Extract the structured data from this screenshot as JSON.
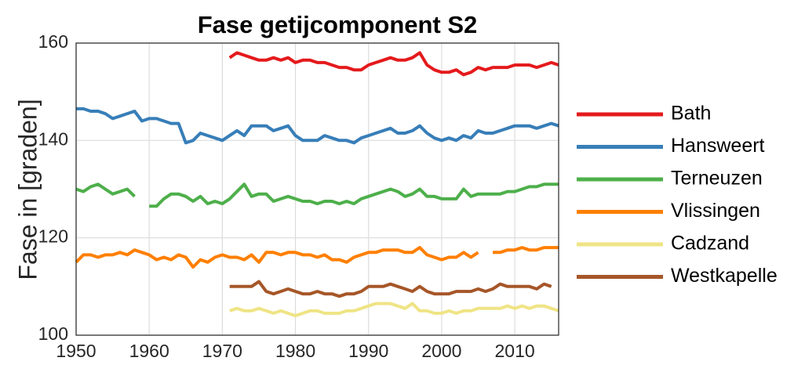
{
  "chart_data": {
    "type": "line",
    "title": "Fase getijcomponent S2",
    "y_label": "Fase in [graden]",
    "x": [
      1950,
      1951,
      1952,
      1953,
      1954,
      1955,
      1956,
      1957,
      1958,
      1959,
      1960,
      1961,
      1962,
      1963,
      1964,
      1965,
      1966,
      1967,
      1968,
      1969,
      1970,
      1971,
      1972,
      1973,
      1974,
      1975,
      1976,
      1977,
      1978,
      1979,
      1980,
      1981,
      1982,
      1983,
      1984,
      1985,
      1986,
      1987,
      1988,
      1989,
      1990,
      1991,
      1992,
      1993,
      1994,
      1995,
      1996,
      1997,
      1998,
      1999,
      2000,
      2001,
      2002,
      2003,
      2004,
      2005,
      2006,
      2007,
      2008,
      2009,
      2010,
      2011,
      2012,
      2013,
      2014,
      2015,
      2016
    ],
    "xlim": [
      1950,
      2016
    ],
    "xticks": [
      1950,
      1960,
      1970,
      1980,
      1990,
      2000,
      2010
    ],
    "ylim": [
      100,
      160
    ],
    "yticks": [
      100,
      120,
      140,
      160
    ],
    "grid": true,
    "legend": "right",
    "series": [
      {
        "name": "Bath",
        "color": "#e41a1c",
        "values": [
          null,
          null,
          null,
          null,
          null,
          null,
          null,
          null,
          null,
          null,
          null,
          null,
          null,
          null,
          null,
          null,
          null,
          null,
          null,
          null,
          null,
          157,
          158,
          157.5,
          157,
          156.5,
          156.5,
          157,
          156.5,
          157,
          156,
          156.5,
          156.5,
          156,
          156,
          155.5,
          155,
          155,
          154.5,
          154.5,
          155.5,
          156,
          156.5,
          157,
          156.5,
          156.5,
          157,
          158,
          155.5,
          154.5,
          154,
          154,
          154.5,
          153.5,
          154,
          155,
          154.5,
          155,
          155,
          155,
          155.5,
          155.5,
          155.5,
          155,
          155.5,
          156,
          155.5
        ]
      },
      {
        "name": "Hansweert",
        "color": "#377eb8",
        "values": [
          146.5,
          146.5,
          146,
          146,
          145.5,
          144.5,
          145,
          145.5,
          146,
          144,
          144.5,
          144.5,
          144,
          143.5,
          143.5,
          139.5,
          140,
          141.5,
          141,
          140.5,
          140,
          141,
          142,
          141,
          143,
          143,
          143,
          142,
          142.5,
          143,
          141,
          140,
          140,
          140,
          141,
          140.5,
          140,
          140,
          139.5,
          140.5,
          141,
          141.5,
          142,
          142.5,
          141.5,
          141.5,
          142,
          143,
          141.5,
          140.5,
          140,
          140.5,
          140,
          141,
          140.5,
          142,
          141.5,
          141.5,
          142,
          142.5,
          143,
          143,
          143,
          142.5,
          143,
          143.5,
          143
        ]
      },
      {
        "name": "Terneuzen",
        "color": "#4daf4a",
        "values": [
          130,
          129.5,
          130.5,
          131,
          130,
          129,
          129.5,
          130,
          128.5,
          null,
          126.5,
          126.5,
          128,
          129,
          129,
          128.5,
          127.5,
          128.5,
          127,
          127.5,
          127,
          128,
          129.5,
          131,
          128.5,
          129,
          129,
          127.5,
          128,
          128.5,
          128,
          127.5,
          127.5,
          127,
          127.5,
          127.5,
          127,
          127.5,
          127,
          128,
          128.5,
          129,
          129.5,
          130,
          129.5,
          128.5,
          129,
          130,
          128.5,
          128.5,
          128,
          128,
          128,
          130,
          128.5,
          129,
          129,
          129,
          129,
          129.5,
          129.5,
          130,
          130.5,
          130.5,
          131,
          131,
          131
        ]
      },
      {
        "name": "Vlissingen",
        "color": "#ff7f00",
        "values": [
          115,
          116.5,
          116.5,
          116,
          116.5,
          116.5,
          117,
          116.5,
          117.5,
          117,
          116.5,
          115.5,
          116,
          115.5,
          116.5,
          116,
          114,
          115.5,
          115,
          116,
          116.5,
          116,
          116,
          115.5,
          116.5,
          115,
          117,
          117,
          116.5,
          117,
          117,
          116.5,
          116.5,
          116,
          116.5,
          115.5,
          115.5,
          115,
          116,
          116.5,
          117,
          117,
          117.5,
          117.5,
          117.5,
          117,
          117,
          118,
          116.5,
          116,
          115.5,
          116,
          116,
          117,
          116,
          117,
          null,
          117,
          117,
          117.5,
          117.5,
          118,
          117.5,
          117.5,
          118,
          118,
          118
        ]
      },
      {
        "name": "Cadzand",
        "color": "#efe485",
        "values": [
          null,
          null,
          null,
          null,
          null,
          null,
          null,
          null,
          null,
          null,
          null,
          null,
          null,
          null,
          null,
          null,
          null,
          null,
          null,
          null,
          null,
          105,
          105.5,
          105,
          105,
          105.5,
          105,
          104.5,
          105,
          104.5,
          104,
          104.5,
          105,
          105,
          104.5,
          104.5,
          104.5,
          105,
          105,
          105.5,
          106,
          106.5,
          106.5,
          106.5,
          106,
          105.5,
          106.5,
          105,
          105,
          104.5,
          104.5,
          105,
          104.5,
          105,
          105,
          105.5,
          105.5,
          105.5,
          105.5,
          106,
          105.5,
          106,
          105.5,
          106,
          106,
          105.5,
          105
        ]
      },
      {
        "name": "Westkapelle",
        "color": "#a65628",
        "values": [
          null,
          null,
          null,
          null,
          null,
          null,
          null,
          null,
          null,
          null,
          null,
          null,
          null,
          null,
          null,
          null,
          null,
          null,
          null,
          null,
          null,
          110,
          110,
          110,
          110,
          111,
          109,
          108.5,
          109,
          109.5,
          109,
          108.5,
          108.5,
          109,
          108.5,
          108.5,
          108,
          108.5,
          108.5,
          109,
          110,
          110,
          110,
          110.5,
          110,
          109.5,
          109,
          110,
          109,
          108.5,
          108.5,
          108.5,
          109,
          109,
          109,
          109.5,
          109,
          109.5,
          110.5,
          110,
          110,
          110,
          110,
          109.5,
          110.5,
          110,
          null
        ]
      }
    ]
  }
}
